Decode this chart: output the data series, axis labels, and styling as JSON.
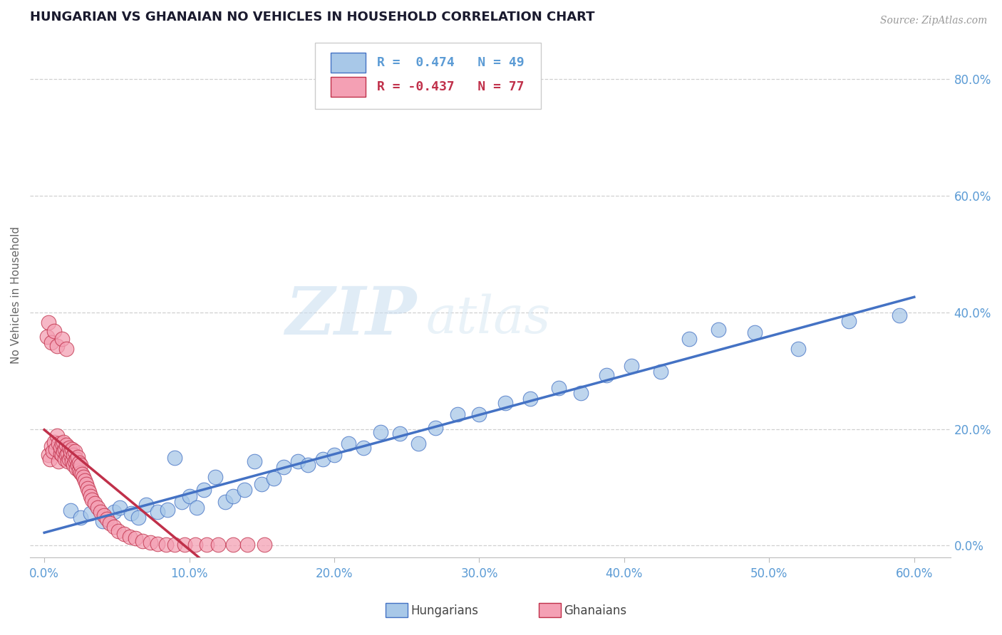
{
  "title": "HUNGARIAN VS GHANAIAN NO VEHICLES IN HOUSEHOLD CORRELATION CHART",
  "source": "Source: ZipAtlas.com",
  "xlim": [
    -0.01,
    0.625
  ],
  "ylim": [
    -0.02,
    0.88
  ],
  "ylabel": "No Vehicles in Household",
  "hungarian_color": "#a8c8e8",
  "ghanaian_color": "#f4a0b4",
  "hungarian_line_color": "#4472c4",
  "ghanaian_line_color": "#c0304a",
  "legend_R_hungarian": "R =  0.474",
  "legend_N_hungarian": "N = 49",
  "legend_R_ghanaian": "R = -0.437",
  "legend_N_ghanaian": "N = 77",
  "watermark_zip": "ZIP",
  "watermark_atlas": "atlas",
  "background_color": "#ffffff",
  "grid_color": "#d0d0d0",
  "tick_color": "#5b9bd5",
  "hungarian_x": [
    0.018,
    0.025,
    0.032,
    0.04,
    0.048,
    0.052,
    0.06,
    0.065,
    0.07,
    0.078,
    0.085,
    0.09,
    0.095,
    0.1,
    0.105,
    0.11,
    0.118,
    0.125,
    0.13,
    0.138,
    0.145,
    0.15,
    0.158,
    0.165,
    0.175,
    0.182,
    0.192,
    0.2,
    0.21,
    0.22,
    0.232,
    0.245,
    0.258,
    0.27,
    0.285,
    0.3,
    0.318,
    0.335,
    0.355,
    0.37,
    0.388,
    0.405,
    0.425,
    0.445,
    0.465,
    0.49,
    0.52,
    0.555,
    0.59
  ],
  "hungarian_y": [
    0.06,
    0.048,
    0.055,
    0.042,
    0.058,
    0.065,
    0.055,
    0.048,
    0.07,
    0.058,
    0.062,
    0.15,
    0.075,
    0.085,
    0.065,
    0.095,
    0.118,
    0.075,
    0.085,
    0.095,
    0.145,
    0.105,
    0.115,
    0.135,
    0.145,
    0.138,
    0.148,
    0.155,
    0.175,
    0.168,
    0.195,
    0.192,
    0.175,
    0.202,
    0.225,
    0.225,
    0.245,
    0.252,
    0.27,
    0.262,
    0.292,
    0.308,
    0.298,
    0.355,
    0.37,
    0.365,
    0.338,
    0.385,
    0.395
  ],
  "ghanaian_x": [
    0.003,
    0.004,
    0.005,
    0.006,
    0.007,
    0.008,
    0.009,
    0.01,
    0.01,
    0.011,
    0.011,
    0.012,
    0.012,
    0.013,
    0.013,
    0.014,
    0.014,
    0.015,
    0.015,
    0.016,
    0.016,
    0.017,
    0.017,
    0.018,
    0.018,
    0.019,
    0.019,
    0.02,
    0.02,
    0.021,
    0.021,
    0.022,
    0.022,
    0.023,
    0.023,
    0.024,
    0.024,
    0.025,
    0.025,
    0.026,
    0.027,
    0.028,
    0.029,
    0.03,
    0.031,
    0.032,
    0.033,
    0.035,
    0.037,
    0.039,
    0.041,
    0.043,
    0.045,
    0.048,
    0.051,
    0.055,
    0.059,
    0.063,
    0.068,
    0.073,
    0.078,
    0.084,
    0.09,
    0.097,
    0.104,
    0.112,
    0.12,
    0.13,
    0.14,
    0.152,
    0.002,
    0.003,
    0.005,
    0.007,
    0.009,
    0.012,
    0.015
  ],
  "ghanaian_y": [
    0.155,
    0.148,
    0.17,
    0.162,
    0.178,
    0.165,
    0.188,
    0.145,
    0.175,
    0.158,
    0.168,
    0.155,
    0.175,
    0.162,
    0.178,
    0.148,
    0.165,
    0.155,
    0.172,
    0.145,
    0.158,
    0.168,
    0.148,
    0.155,
    0.162,
    0.145,
    0.165,
    0.138,
    0.155,
    0.145,
    0.162,
    0.132,
    0.148,
    0.138,
    0.152,
    0.128,
    0.142,
    0.125,
    0.138,
    0.122,
    0.118,
    0.112,
    0.105,
    0.098,
    0.092,
    0.085,
    0.078,
    0.072,
    0.065,
    0.058,
    0.052,
    0.045,
    0.038,
    0.032,
    0.025,
    0.02,
    0.015,
    0.012,
    0.008,
    0.005,
    0.003,
    0.002,
    0.002,
    0.001,
    0.001,
    0.001,
    0.001,
    0.001,
    0.001,
    0.001,
    0.358,
    0.382,
    0.348,
    0.368,
    0.342,
    0.355,
    0.338
  ]
}
